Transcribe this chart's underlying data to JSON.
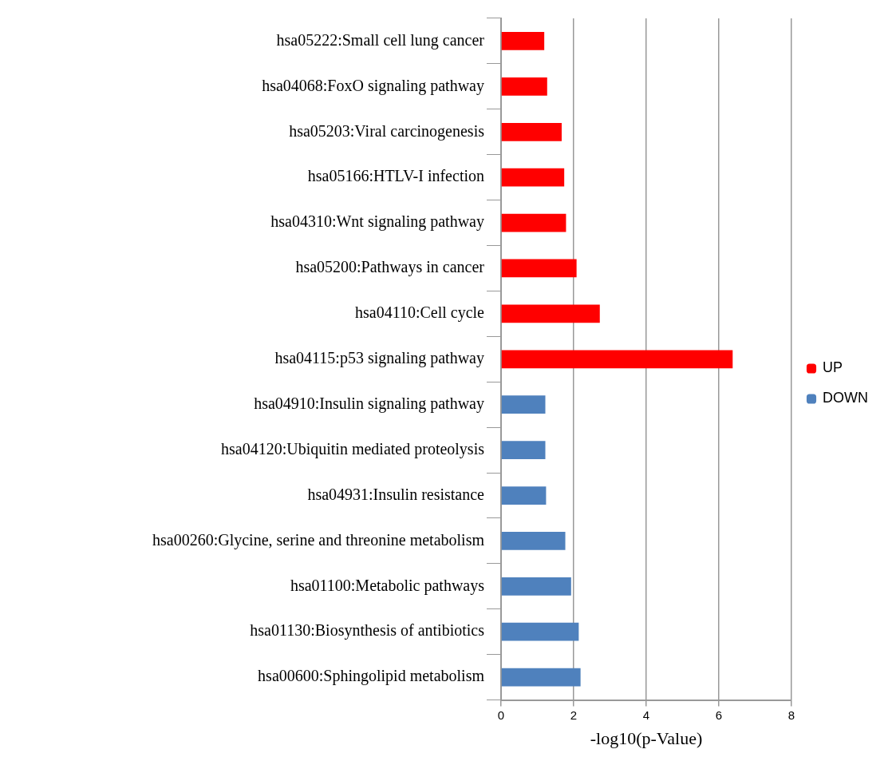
{
  "chart_data": {
    "type": "bar",
    "orientation": "horizontal",
    "xlabel": "-log10(p-Value)",
    "categories": [
      "hsa05222:Small cell lung cancer",
      "hsa04068:FoxO signaling pathway",
      "hsa05203:Viral carcinogenesis",
      "hsa05166:HTLV-I infection",
      "hsa04310:Wnt signaling pathway",
      "hsa05200:Pathways in cancer",
      "hsa04110:Cell cycle",
      "hsa04115:p53 signaling pathway",
      "hsa04910:Insulin signaling pathway",
      "hsa04120:Ubiquitin mediated proteolysis",
      "hsa04931:Insulin resistance",
      "hsa00260:Glycine, serine and threonine metabolism",
      "hsa01100:Metabolic pathways",
      "hsa01130:Biosynthesis of antibiotics",
      "hsa00600:Sphingolipid metabolism"
    ],
    "series": [
      {
        "name": "UP",
        "color": "#ff0000",
        "values": [
          1.19,
          1.27,
          1.67,
          1.74,
          1.79,
          2.08,
          2.72,
          6.38,
          null,
          null,
          null,
          null,
          null,
          null,
          null
        ]
      },
      {
        "name": "DOWN",
        "color": "#4f81bd",
        "values": [
          null,
          null,
          null,
          null,
          null,
          null,
          null,
          null,
          1.22,
          1.22,
          1.24,
          1.77,
          1.93,
          2.14,
          2.19
        ]
      }
    ],
    "xlim": [
      0,
      8
    ],
    "xticks": [
      0,
      2,
      4,
      6,
      8
    ],
    "grid": "x",
    "legend": "right"
  }
}
